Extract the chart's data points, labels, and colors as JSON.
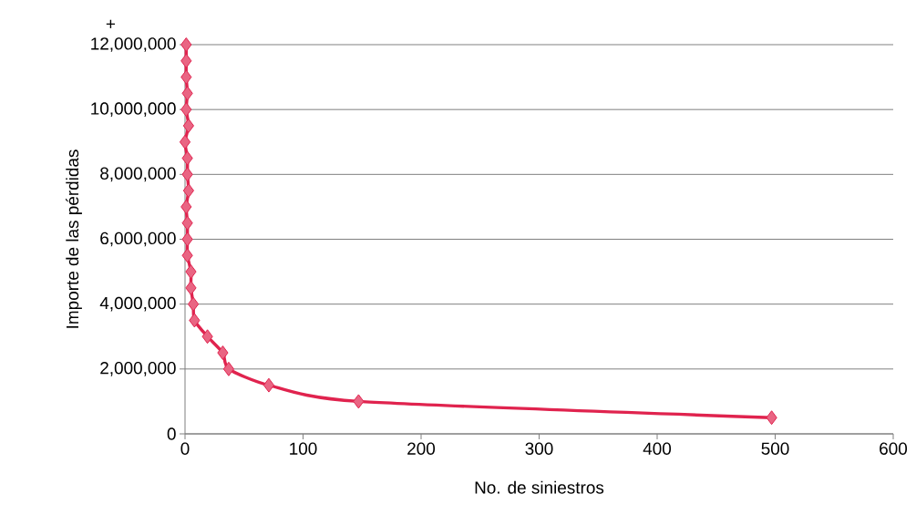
{
  "chart_data": {
    "type": "line",
    "xlabel": "No. de siniestros",
    "ylabel": "Importe de las pérdidas",
    "annotations": [
      "+"
    ],
    "series": [
      {
        "color": "#e0234e",
        "x": [
          1,
          1,
          1,
          2,
          1,
          3,
          0,
          2,
          2,
          3,
          1,
          2,
          2,
          2,
          5,
          5,
          7,
          8,
          19,
          32,
          37,
          71,
          147,
          497
        ],
        "values": [
          12000000,
          11500000,
          11000000,
          10500000,
          10000000,
          9500000,
          9000000,
          8500000,
          8000000,
          7500000,
          7000000,
          6500000,
          6000000,
          5500000,
          5000000,
          4500000,
          4000000,
          3500000,
          3000000,
          2500000,
          2000000,
          1500000,
          1000000,
          500000
        ]
      }
    ],
    "xlim": [
      0,
      600
    ],
    "ylim": [
      0,
      12000000
    ],
    "xticks": [
      0,
      100,
      200,
      300,
      400,
      500,
      600
    ],
    "yticks": [
      {
        "value": 0,
        "label": "0"
      },
      {
        "value": 2000000,
        "label": "2,000,000"
      },
      {
        "value": 4000000,
        "label": "4,000,000"
      },
      {
        "value": 6000000,
        "label": "6,000,000"
      },
      {
        "value": 8000000,
        "label": "8,000,000"
      },
      {
        "value": 10000000,
        "label": "10,000,000"
      },
      {
        "value": 12000000,
        "label": "12,000,000"
      }
    ],
    "grid": "y",
    "marker": "diamond",
    "line_style": "solid"
  }
}
